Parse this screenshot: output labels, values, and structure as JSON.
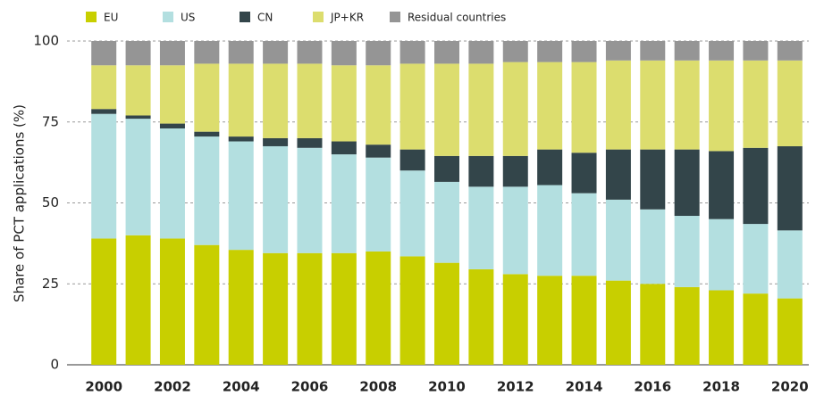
{
  "chart_data": {
    "type": "stacked_bar",
    "ylabel": "Share of PCT applications (%)",
    "categories": [
      "2000",
      null,
      "2002",
      null,
      "2004",
      null,
      "2006",
      null,
      "2008",
      null,
      "2010",
      null,
      "2012",
      null,
      "2014",
      null,
      "2016",
      null,
      "2018",
      null,
      "2020"
    ],
    "series": [
      {
        "name": "EU",
        "color": "#c8cf00",
        "values": [
          39,
          40,
          39,
          37,
          35.5,
          34.5,
          34.5,
          34.5,
          35,
          33.5,
          31.5,
          29.5,
          28,
          27.5,
          27.5,
          26,
          25,
          24,
          23,
          22,
          20.5
        ]
      },
      {
        "name": "US",
        "color": "#b3dfe0",
        "values": [
          38.5,
          36,
          34,
          33.5,
          33.5,
          33,
          32.5,
          30.5,
          29,
          26.5,
          25,
          25.5,
          27,
          28,
          25.5,
          25,
          23,
          22,
          22,
          21.5,
          21
        ]
      },
      {
        "name": "CN",
        "color": "#33454a",
        "values": [
          1.5,
          1,
          1.5,
          1.5,
          1.5,
          2.5,
          3,
          4,
          4,
          6.5,
          8,
          9.5,
          9.5,
          11,
          12.5,
          15.5,
          18.5,
          20.5,
          21,
          23.5,
          26
        ]
      },
      {
        "name": "JP+KR",
        "color": "#dcdd6e",
        "values": [
          13.5,
          15.5,
          18,
          21,
          22.5,
          23,
          23,
          23.5,
          24.5,
          26.5,
          28.5,
          28.5,
          29,
          27,
          28,
          27.5,
          27.5,
          27.5,
          28,
          27,
          26.5
        ]
      },
      {
        "name": "Residual countries",
        "color": "#959595",
        "values": [
          7.5,
          7.5,
          7.5,
          7,
          7,
          7,
          7,
          7.5,
          7.5,
          7,
          7,
          7,
          6.5,
          6.5,
          6.5,
          6,
          6,
          6,
          6,
          6,
          6
        ]
      }
    ],
    "ylim": [
      0,
      100
    ],
    "yticks": [
      0,
      25,
      50,
      75,
      100
    ],
    "grid": true,
    "legend": "top"
  }
}
